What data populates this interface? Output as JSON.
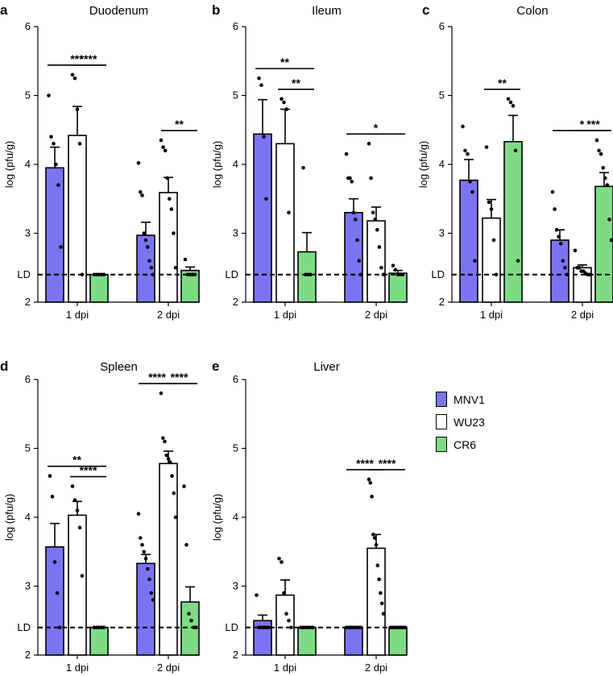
{
  "colors": {
    "MNV1": "#7B74F2",
    "WU23": "#FFFFFF",
    "CR6": "#7DDC83",
    "axis": "#000000"
  },
  "legend": [
    {
      "label": "MNV1",
      "color": "#7B74F2"
    },
    {
      "label": "WU23",
      "color": "#FFFFFF"
    },
    {
      "label": "CR6",
      "color": "#7DDC83"
    }
  ],
  "chart_data": [
    {
      "type": "bar",
      "panel_letter": "a",
      "title": "Duodenum",
      "ylabel": "log (pfu/g)",
      "ylim": [
        2,
        6
      ],
      "yticks": [
        "2",
        "3",
        "4",
        "5",
        "6"
      ],
      "categories": [
        "1 dpi",
        "2 dpi"
      ],
      "limit_of_detection": {
        "label": "LD",
        "value": 2.4
      },
      "series": [
        {
          "name": "MNV1",
          "values": [
            3.95,
            2.97
          ],
          "sem": [
            0.3,
            0.19
          ],
          "points": [
            [
              5.0,
              4.4,
              4.3,
              4.0,
              3.7,
              2.8
            ],
            [
              4.02,
              3.6,
              3.55,
              3.0,
              2.9,
              2.8,
              2.6,
              2.5,
              2.4
            ]
          ]
        },
        {
          "name": "WU23",
          "values": [
            4.42,
            3.59
          ],
          "sem": [
            0.42,
            0.22
          ],
          "points": [
            [
              5.3,
              5.25,
              4.8,
              4.3,
              2.4
            ],
            [
              4.35,
              4.25,
              4.2,
              3.8,
              3.5,
              3.35,
              3.0,
              2.5
            ]
          ]
        },
        {
          "name": "CR6",
          "values": [
            2.4,
            2.46
          ],
          "sem": [
            0,
            0.05
          ],
          "points": [
            [
              2.4,
              2.4,
              2.4,
              2.4,
              2.4
            ],
            [
              2.62,
              2.4,
              2.4,
              2.4,
              2.4
            ]
          ]
        }
      ],
      "significance": [
        {
          "from": [
            0,
            0
          ],
          "to": [
            0,
            2
          ],
          "label": "***"
        },
        {
          "from": [
            0,
            1
          ],
          "to": [
            0,
            2
          ],
          "label": "****"
        },
        {
          "from": [
            1,
            1
          ],
          "to": [
            1,
            2
          ],
          "label": "**"
        }
      ]
    },
    {
      "type": "bar",
      "panel_letter": "b",
      "title": "Ileum",
      "ylabel": "log (pfu/g)",
      "ylim": [
        2,
        6
      ],
      "yticks": [
        "2",
        "3",
        "4",
        "5",
        "6"
      ],
      "categories": [
        "1 dpi",
        "2 dpi"
      ],
      "limit_of_detection": {
        "label": "LD",
        "value": 2.4
      },
      "series": [
        {
          "name": "MNV1",
          "values": [
            4.44,
            3.3
          ],
          "sem": [
            0.5,
            0.2
          ],
          "points": [
            [
              5.25,
              5.15,
              4.4,
              3.5
            ],
            [
              4.15,
              3.8,
              3.8,
              3.75,
              3.3,
              3.2,
              2.9,
              2.6,
              2.4
            ]
          ]
        },
        {
          "name": "WU23",
          "values": [
            4.3,
            3.18
          ],
          "sem": [
            0.5,
            0.2
          ],
          "points": [
            [
              4.95,
              4.9,
              4.8,
              3.3
            ],
            [
              4.3,
              3.8,
              3.3,
              3.2,
              3.05,
              2.8,
              2.5,
              2.4
            ]
          ]
        },
        {
          "name": "CR6",
          "values": [
            2.73,
            2.42
          ],
          "sem": [
            0.28,
            0.04
          ],
          "points": [
            [
              3.95,
              2.4,
              2.4,
              2.4
            ],
            [
              2.53,
              2.47,
              2.4,
              2.4,
              2.4
            ]
          ]
        }
      ],
      "significance": [
        {
          "from": [
            0,
            0
          ],
          "to": [
            0,
            2
          ],
          "label": "**"
        },
        {
          "from": [
            0,
            1
          ],
          "to": [
            0,
            2
          ],
          "label": "**"
        },
        {
          "from": [
            1,
            0
          ],
          "to": [
            1,
            2
          ],
          "label": "*"
        }
      ]
    },
    {
      "type": "bar",
      "panel_letter": "c",
      "title": "Colon",
      "ylabel": "log (pfu/g)",
      "ylim": [
        2,
        6
      ],
      "yticks": [
        "2",
        "3",
        "4",
        "5",
        "6"
      ],
      "categories": [
        "1 dpi",
        "2 dpi"
      ],
      "limit_of_detection": {
        "label": "LD",
        "value": 2.4
      },
      "series": [
        {
          "name": "MNV1",
          "values": [
            3.77,
            2.9
          ],
          "sem": [
            0.3,
            0.15
          ],
          "points": [
            [
              4.55,
              4.2,
              4.15,
              3.75,
              3.6,
              2.6
            ],
            [
              3.6,
              3.35,
              3.05,
              2.95,
              2.85,
              2.6,
              2.5,
              2.4
            ]
          ]
        },
        {
          "name": "WU23",
          "values": [
            3.22,
            2.5
          ],
          "sem": [
            0.27,
            0.04
          ],
          "points": [
            [
              4.25,
              3.45,
              3.35,
              2.9,
              2.4
            ],
            [
              2.75,
              2.5,
              2.5,
              2.45,
              2.45,
              2.42,
              2.4,
              2.4
            ]
          ]
        },
        {
          "name": "CR6",
          "values": [
            4.33,
            3.68
          ],
          "sem": [
            0.38,
            0.2
          ],
          "points": [
            [
              4.95,
              4.9,
              4.85,
              4.2,
              2.6
            ],
            [
              4.35,
              4.2,
              4.15,
              3.95,
              3.8,
              3.7,
              3.2,
              2.9
            ]
          ]
        }
      ],
      "significance": [
        {
          "from": [
            0,
            1
          ],
          "to": [
            0,
            2
          ],
          "label": "**"
        },
        {
          "from": [
            1,
            0
          ],
          "to": [
            1,
            2
          ],
          "label": "*"
        },
        {
          "from": [
            1,
            1
          ],
          "to": [
            1,
            2
          ],
          "label": "***"
        }
      ]
    },
    {
      "type": "bar",
      "panel_letter": "d",
      "title": "Spleen",
      "ylabel": "log (pfu/g)",
      "ylim": [
        2,
        6
      ],
      "yticks": [
        "2",
        "3",
        "4",
        "5",
        "6"
      ],
      "categories": [
        "1 dpi",
        "2 dpi"
      ],
      "limit_of_detection": {
        "label": "LD",
        "value": 2.4
      },
      "series": [
        {
          "name": "MNV1",
          "values": [
            3.57,
            3.33
          ],
          "sem": [
            0.34,
            0.13
          ],
          "points": [
            [
              4.6,
              4.3,
              3.35,
              2.9,
              2.4
            ],
            [
              4.05,
              3.7,
              3.6,
              3.5,
              3.4,
              3.25,
              3.1,
              2.9,
              2.8
            ]
          ]
        },
        {
          "name": "WU23",
          "values": [
            4.03,
            4.78
          ],
          "sem": [
            0.2,
            0.18
          ],
          "points": [
            [
              4.45,
              4.25,
              4.1,
              3.85,
              3.15
            ],
            [
              5.8,
              5.15,
              5.1,
              4.9,
              4.85,
              4.8,
              4.6,
              4.35,
              4.0
            ]
          ]
        },
        {
          "name": "CR6",
          "values": [
            2.4,
            2.77
          ],
          "sem": [
            0,
            0.22
          ],
          "points": [
            [
              2.4,
              2.4,
              2.4,
              2.4,
              2.4
            ],
            [
              4.45,
              3.6,
              2.6,
              2.5,
              2.4,
              2.4
            ]
          ]
        }
      ],
      "significance": [
        {
          "from": [
            0,
            0
          ],
          "to": [
            0,
            2
          ],
          "label": "**"
        },
        {
          "from": [
            0,
            1
          ],
          "to": [
            0,
            2
          ],
          "label": "****"
        },
        {
          "from": [
            1,
            0
          ],
          "to": [
            1,
            1
          ],
          "label": "****"
        },
        {
          "from": [
            1,
            1
          ],
          "to": [
            1,
            2
          ],
          "label": "****"
        }
      ]
    },
    {
      "type": "bar",
      "panel_letter": "e",
      "title": "Liver",
      "ylabel": "log (pfu/g)",
      "ylim": [
        2,
        6
      ],
      "yticks": [
        "2",
        "3",
        "4",
        "5",
        "6"
      ],
      "categories": [
        "1 dpi",
        "2 dpi"
      ],
      "limit_of_detection": {
        "label": "LD",
        "value": 2.4
      },
      "series": [
        {
          "name": "MNV1",
          "values": [
            2.5,
            2.4
          ],
          "sem": [
            0.08,
            0
          ],
          "points": [
            [
              2.87,
              2.4,
              2.4,
              2.4,
              2.4,
              2.4
            ],
            [
              2.4,
              2.4,
              2.4,
              2.4,
              2.4,
              2.4,
              2.4,
              2.4
            ]
          ]
        },
        {
          "name": "WU23",
          "values": [
            2.87,
            3.55
          ],
          "sem": [
            0.22,
            0.2
          ],
          "points": [
            [
              3.4,
              3.35,
              2.9,
              2.6,
              2.5,
              2.4
            ],
            [
              4.55,
              4.5,
              4.3,
              3.75,
              3.7,
              3.6,
              3.3,
              3.1,
              2.9,
              2.75,
              2.6
            ]
          ]
        },
        {
          "name": "CR6",
          "values": [
            2.4,
            2.4
          ],
          "sem": [
            0,
            0
          ],
          "points": [
            [
              2.4,
              2.4,
              2.4,
              2.4,
              2.4,
              2.4
            ],
            [
              2.4,
              2.4,
              2.4,
              2.4,
              2.4,
              2.4,
              2.4,
              2.4
            ]
          ]
        }
      ],
      "significance": [
        {
          "from": [
            1,
            0
          ],
          "to": [
            1,
            1
          ],
          "label": "****"
        },
        {
          "from": [
            1,
            1
          ],
          "to": [
            1,
            2
          ],
          "label": "****"
        }
      ]
    }
  ]
}
